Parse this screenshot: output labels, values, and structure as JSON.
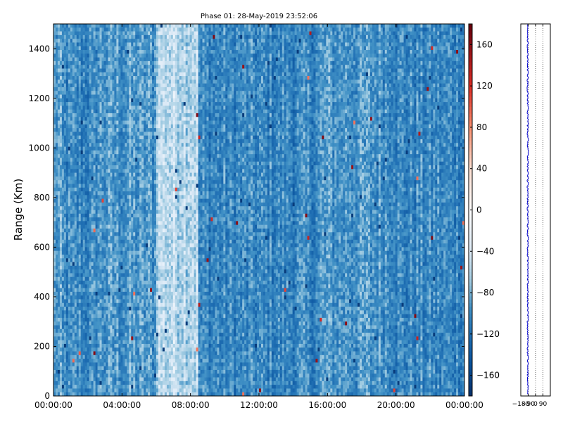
{
  "chart_data": [
    {
      "type": "heatmap",
      "title": "Phase 01: 28-May-2019 23:52:06",
      "xlabel": "",
      "ylabel": "Range (Km)",
      "x_ticks": [
        "00:00:00",
        "04:00:00",
        "08:00:00",
        "12:00:00",
        "16:00:00",
        "20:00:00",
        "00:00:00"
      ],
      "x_tick_hours": [
        0,
        4,
        8,
        12,
        16,
        20,
        24
      ],
      "xlim_hours": [
        0,
        24
      ],
      "ylim": [
        0,
        1500
      ],
      "y_ticks": [
        0,
        200,
        400,
        600,
        800,
        1000,
        1200,
        1400
      ],
      "value_range": [
        -180,
        180
      ],
      "colormap": "RdBu_r",
      "colors": {
        "low": "#08306b",
        "mid_low": "#4292c6",
        "zero": "#ffffff",
        "high": "#67000d"
      },
      "typical_value": -95,
      "bright_band_hours": [
        6.0,
        8.4
      ],
      "bright_band_value": -55,
      "dark_band_hours": [
        [
          0.5,
          2.5
        ],
        [
          8.5,
          15.5
        ],
        [
          20,
          24
        ]
      ],
      "colorbar": {
        "ticks": [
          -160,
          -120,
          -80,
          -40,
          0,
          40,
          80,
          120,
          160
        ],
        "tick_labels": [
          "−160",
          "−120",
          "−80",
          "−40",
          "0",
          "40",
          "80",
          "120",
          "160"
        ]
      },
      "grid": false
    },
    {
      "type": "line",
      "title": "",
      "xlabel": "",
      "ylabel": "",
      "xlim": [
        -180,
        180
      ],
      "x_ticks": [
        -180,
        -90,
        0,
        90
      ],
      "x_tick_labels": [
        "−180",
        "−90",
        "0",
        "90"
      ],
      "ylim": [
        0,
        1500
      ],
      "series": [
        {
          "values_mean": -95,
          "spread": 8,
          "color": "#0000cc"
        }
      ],
      "grid": true
    }
  ]
}
